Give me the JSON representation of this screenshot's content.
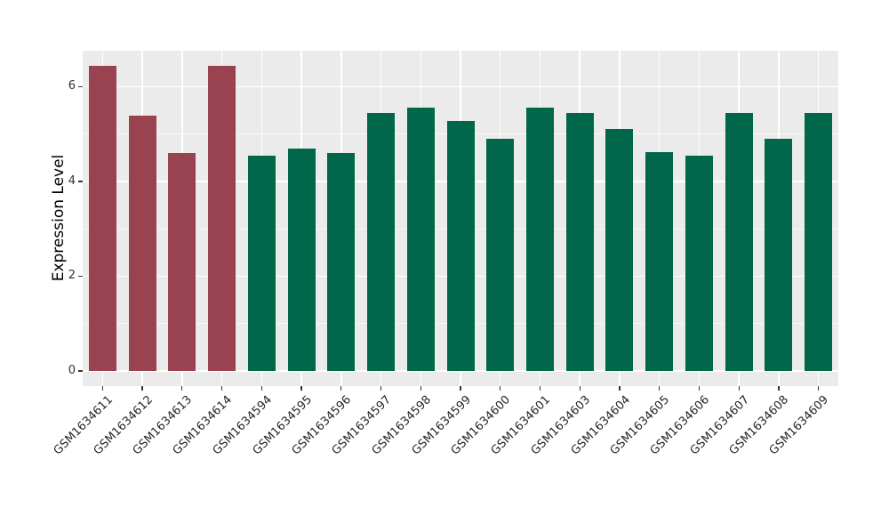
{
  "figure": {
    "background": "#FFFFFF"
  },
  "chart_data": {
    "type": "bar",
    "title": "",
    "xlabel": "",
    "ylabel": "Expression Level",
    "categories": [
      "GSM1634611",
      "GSM1634612",
      "GSM1634613",
      "GSM1634614",
      "GSM1634594",
      "GSM1634595",
      "GSM1634596",
      "GSM1634597",
      "GSM1634598",
      "GSM1634599",
      "GSM1634600",
      "GSM1634601",
      "GSM1634603",
      "GSM1634604",
      "GSM1634605",
      "GSM1634606",
      "GSM1634607",
      "GSM1634608",
      "GSM1634609"
    ],
    "values": [
      6.45,
      5.38,
      4.6,
      6.45,
      4.55,
      4.69,
      4.6,
      5.45,
      5.55,
      5.27,
      4.9,
      5.55,
      5.44,
      5.1,
      4.62,
      4.55,
      5.45,
      4.91,
      5.44
    ],
    "bar_colors": [
      "#9A4350",
      "#9A4350",
      "#9A4350",
      "#9A4350",
      "#01674A",
      "#01674A",
      "#01674A",
      "#01674A",
      "#01674A",
      "#01674A",
      "#01674A",
      "#01674A",
      "#01674A",
      "#01674A",
      "#01674A",
      "#01674A",
      "#01674A",
      "#01674A",
      "#01674A"
    ],
    "group_colors": {
      "red_group": "#9A4350",
      "green_group": "#01674A"
    },
    "yticks": [
      0,
      2,
      4,
      6
    ],
    "minor_yticks": [
      1,
      3,
      5
    ],
    "ylim": [
      -0.32,
      6.76
    ],
    "grid": true,
    "legend_position": "none",
    "panel_bg": "#EBEBEB",
    "grid_color": "#FFFFFF",
    "tick_color": "#333333",
    "tick_label_color": "#262626",
    "axis_title_color": "#000000"
  }
}
